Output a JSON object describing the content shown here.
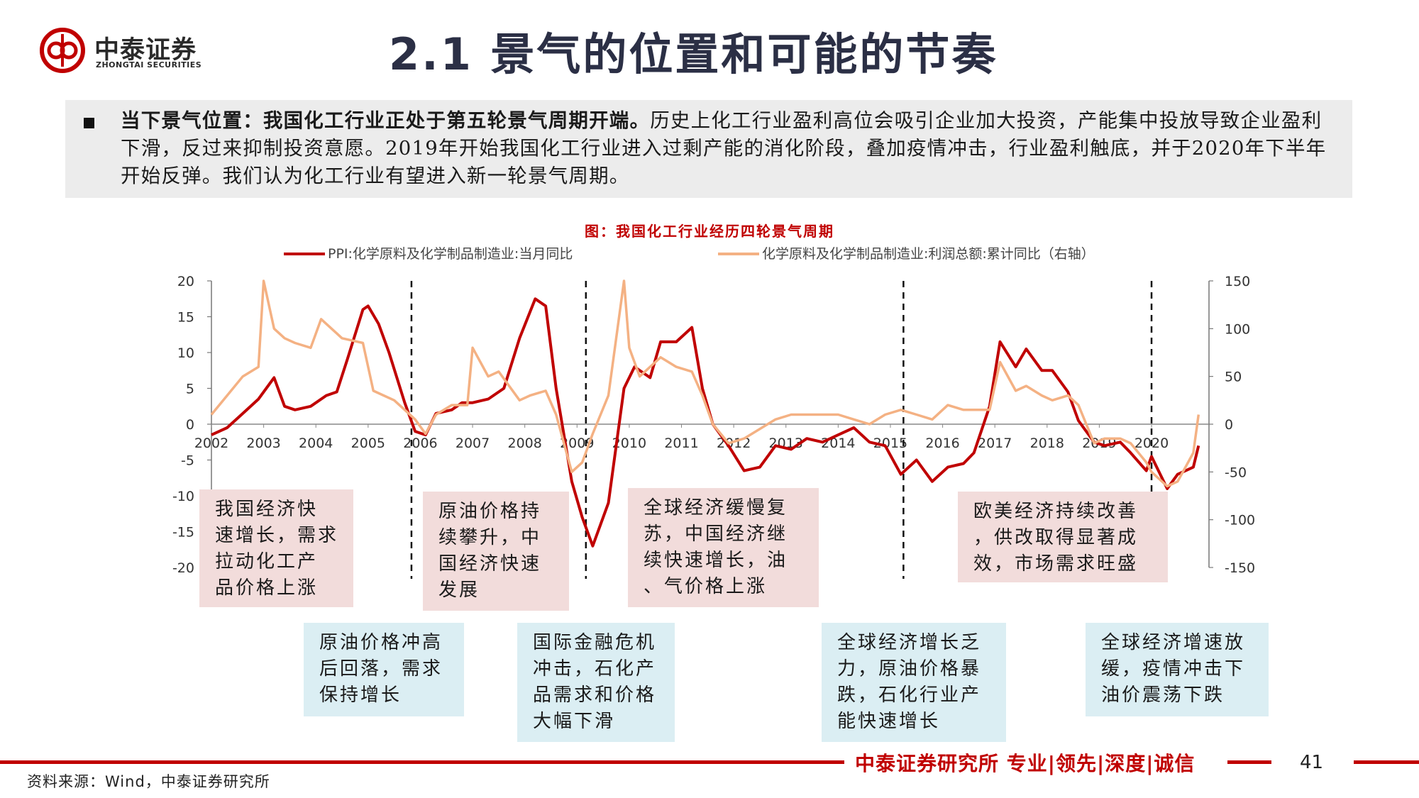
{
  "header": {
    "brand_cn": "中泰证券",
    "brand_en": "ZHONGTAI SECURITIES",
    "title": "2.1 景气的位置和可能的节奏"
  },
  "summary": {
    "lead": "当下景气位置：我国化工行业正处于第五轮景气周期开端。",
    "body": "历史上化工行业盈利高位会吸引企业加大投资，产能集中投放导致企业盈利下滑，反过来抑制投资意愿。2019年开始我国化工行业进入过剩产能的消化阶段，叠加疫情冲击，行业盈利触底，并于2020年下半年开始反弹。我们认为化工行业有望进入新一轮景气周期。"
  },
  "chart_title": "图：我国化工行业经历四轮景气周期",
  "notes": [
    {
      "text": "我国经济快\n速增长，需求\n拉动化工产\n品价格上涨",
      "tone": "pink"
    },
    {
      "text": "原油价格持\n续攀升，中\n国经济快速\n发展",
      "tone": "pink"
    },
    {
      "text": "全球经济缓慢复\n苏，中国经济继\n续快速增长，油\n、气价格上涨",
      "tone": "pink"
    },
    {
      "text": "欧美经济持续改善\n，供改取得显著成\n效，市场需求旺盛",
      "tone": "pink"
    },
    {
      "text": "原油价格冲高\n后回落，需求\n保持增长",
      "tone": "blue"
    },
    {
      "text": "国际金融危机\n冲击，石化产\n品需求和价格\n大幅下滑",
      "tone": "blue"
    },
    {
      "text": "全球经济增长乏\n力，原油价格暴\n跌，石化行业产\n能快速增长",
      "tone": "blue"
    },
    {
      "text": "全球经济增速放\n缓，疫情冲击下\n油价震荡下跌",
      "tone": "blue"
    }
  ],
  "footer": {
    "brand": "中泰证券研究所 专业|领先|深度|诚信",
    "page": "41",
    "source": "资料来源：Wind，中泰证券研究所"
  },
  "colors": {
    "ppi_line": "#c00000",
    "profit_line": "#f4b183",
    "accent": "#c00000",
    "title": "#2b2f45"
  },
  "chart_data": {
    "type": "line",
    "title": "图：我国化工行业经历四轮景气周期",
    "x_label_years": [
      "2002",
      "2003",
      "2004",
      "2005",
      "2006",
      "2007",
      "2008",
      "2009",
      "2010",
      "2011",
      "2012",
      "2013",
      "2014",
      "2015",
      "2016",
      "2017",
      "2018",
      "2019",
      "2020"
    ],
    "x_range": [
      2002,
      2021.1
    ],
    "left_axis": {
      "range": [
        -20,
        20
      ],
      "ticks": [
        20,
        15,
        10,
        5,
        0,
        -5,
        -10,
        -15,
        -20
      ]
    },
    "right_axis": {
      "range": [
        -150,
        150
      ],
      "ticks": [
        150,
        100,
        50,
        0,
        -50,
        -100,
        -150
      ]
    },
    "cycle_dividers": [
      2005.83,
      2009.17,
      2015.25,
      2020.0
    ],
    "legend_position": "top",
    "series": [
      {
        "name": "PPI:化学原料及化学制品制造业:当月同比",
        "axis": "left",
        "x": [
          2002.0,
          2002.3,
          2002.6,
          2002.9,
          2003.2,
          2003.4,
          2003.6,
          2003.9,
          2004.2,
          2004.4,
          2004.6,
          2004.9,
          2005.0,
          2005.2,
          2005.4,
          2005.7,
          2005.9,
          2006.1,
          2006.3,
          2006.6,
          2006.8,
          2007.0,
          2007.3,
          2007.6,
          2007.9,
          2008.2,
          2008.4,
          2008.6,
          2008.9,
          2009.1,
          2009.3,
          2009.6,
          2009.9,
          2010.1,
          2010.4,
          2010.6,
          2010.9,
          2011.2,
          2011.4,
          2011.6,
          2011.9,
          2012.2,
          2012.5,
          2012.8,
          2013.1,
          2013.4,
          2013.7,
          2014.0,
          2014.3,
          2014.6,
          2014.9,
          2015.2,
          2015.5,
          2015.8,
          2016.1,
          2016.4,
          2016.6,
          2016.9,
          2017.1,
          2017.4,
          2017.6,
          2017.9,
          2018.1,
          2018.4,
          2018.6,
          2018.9,
          2019.1,
          2019.4,
          2019.6,
          2019.9,
          2020.0,
          2020.3,
          2020.5,
          2020.8,
          2020.9
        ],
        "y": [
          -1.5,
          -0.5,
          1.5,
          3.5,
          6.5,
          2.5,
          2.0,
          2.5,
          4.0,
          4.5,
          9.0,
          16.0,
          16.5,
          14.0,
          10.0,
          3.0,
          -1.0,
          -1.5,
          1.5,
          2.0,
          3.0,
          3.0,
          3.5,
          5.0,
          12.0,
          17.5,
          16.5,
          5.0,
          -8.0,
          -13.0,
          -17.0,
          -11.0,
          5.0,
          8.0,
          6.5,
          11.5,
          11.5,
          13.5,
          5.0,
          0.0,
          -3.0,
          -6.5,
          -6.0,
          -3.0,
          -3.5,
          -2.0,
          -2.5,
          -1.5,
          -0.5,
          -2.5,
          -3.0,
          -7.0,
          -5.0,
          -8.0,
          -6.0,
          -5.5,
          -4.0,
          2.5,
          11.5,
          8.0,
          10.5,
          7.5,
          7.5,
          4.5,
          0.5,
          -2.5,
          -3.0,
          -2.5,
          -4.0,
          -6.5,
          -4.5,
          -9.0,
          -7.0,
          -6.0,
          -3.0
        ]
      },
      {
        "name": "化学原料及化学制品制造业:利润总额:累计同比（右轴）",
        "axis": "right",
        "x": [
          2002.0,
          2002.3,
          2002.6,
          2002.9,
          2003.0,
          2003.2,
          2003.4,
          2003.6,
          2003.9,
          2004.1,
          2004.4,
          2004.5,
          2004.9,
          2005.1,
          2005.3,
          2005.5,
          2005.7,
          2005.9,
          2006.1,
          2006.3,
          2006.6,
          2006.9,
          2007.0,
          2007.3,
          2007.5,
          2007.9,
          2008.1,
          2008.4,
          2008.6,
          2008.9,
          2009.1,
          2009.3,
          2009.6,
          2009.9,
          2010.0,
          2010.2,
          2010.4,
          2010.6,
          2010.9,
          2011.2,
          2011.4,
          2011.6,
          2011.9,
          2012.2,
          2012.5,
          2012.8,
          2013.1,
          2013.4,
          2013.7,
          2014.0,
          2014.3,
          2014.6,
          2014.9,
          2015.2,
          2015.5,
          2015.8,
          2016.1,
          2016.4,
          2016.6,
          2016.9,
          2017.1,
          2017.4,
          2017.6,
          2017.9,
          2018.1,
          2018.4,
          2018.6,
          2018.9,
          2019.1,
          2019.4,
          2019.6,
          2019.9,
          2020.0,
          2020.3,
          2020.5,
          2020.8,
          2020.9
        ],
        "y": [
          10,
          30,
          50,
          60,
          150,
          100,
          90,
          85,
          80,
          110,
          95,
          90,
          85,
          35,
          30,
          25,
          15,
          5,
          -10,
          10,
          20,
          20,
          80,
          50,
          55,
          25,
          30,
          35,
          10,
          -50,
          -40,
          -10,
          30,
          150,
          80,
          50,
          60,
          70,
          60,
          55,
          30,
          0,
          -20,
          -15,
          -5,
          5,
          10,
          10,
          10,
          10,
          5,
          0,
          10,
          15,
          10,
          5,
          20,
          15,
          15,
          15,
          65,
          35,
          40,
          30,
          25,
          30,
          20,
          -20,
          -15,
          -15,
          -20,
          -40,
          -50,
          -65,
          -60,
          -30,
          10
        ]
      }
    ]
  }
}
